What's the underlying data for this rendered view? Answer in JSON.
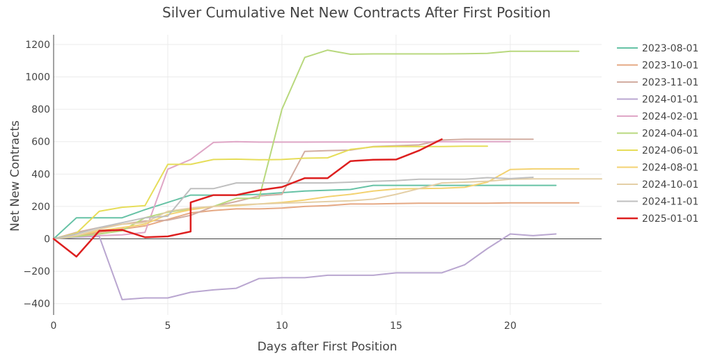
{
  "chart_data": {
    "type": "line",
    "title": "Silver Cumulative Net New Contracts After First Position",
    "xlabel": "Days after First Position",
    "ylabel": "Net New Contracts",
    "xlim": [
      0,
      24
    ],
    "ylim": [
      -470,
      1260
    ],
    "x_ticks": [
      0,
      5,
      10,
      15,
      20
    ],
    "y_ticks": [
      -400,
      -200,
      0,
      200,
      400,
      600,
      800,
      1000,
      1200
    ],
    "y_tick_labels": [
      "−400",
      "−200",
      "0",
      "200",
      "400",
      "600",
      "800",
      "1000",
      "1200"
    ],
    "grid": true,
    "legend_position": "right",
    "series": [
      {
        "name": "2023-08-01",
        "color": "#66c2a5",
        "width": 2,
        "x": [
          0,
          1,
          2,
          3,
          4,
          5,
          6,
          7,
          8,
          9,
          10,
          11,
          12,
          13,
          14,
          15,
          16,
          17,
          18,
          19,
          20,
          21,
          22
        ],
        "y": [
          0,
          130,
          130,
          130,
          180,
          225,
          270,
          270,
          270,
          275,
          285,
          295,
          300,
          305,
          330,
          330,
          330,
          330,
          330,
          330,
          330,
          330,
          330
        ]
      },
      {
        "name": "2023-10-01",
        "color": "#e5a883",
        "width": 2,
        "x": [
          0,
          1,
          2,
          3,
          4,
          5,
          6,
          7,
          8,
          9,
          10,
          11,
          12,
          13,
          14,
          15,
          16,
          17,
          18,
          19,
          20,
          21,
          22,
          23
        ],
        "y": [
          0,
          20,
          40,
          60,
          80,
          120,
          160,
          175,
          185,
          185,
          190,
          200,
          205,
          215,
          215,
          218,
          220,
          220,
          220,
          220,
          222,
          222,
          222,
          222
        ]
      },
      {
        "name": "2023-11-01",
        "color": "#d2ada1",
        "width": 2,
        "x": [
          0,
          1,
          2,
          3,
          4,
          5,
          6,
          7,
          8,
          9,
          10,
          11,
          12,
          13,
          14,
          15,
          16,
          17,
          18,
          19,
          20,
          21
        ],
        "y": [
          0,
          40,
          70,
          90,
          110,
          115,
          145,
          200,
          230,
          265,
          275,
          540,
          545,
          548,
          570,
          575,
          580,
          610,
          615,
          615,
          615,
          615
        ]
      },
      {
        "name": "2024-01-01",
        "color": "#b9a6d0",
        "width": 2,
        "x": [
          0,
          1,
          2,
          3,
          4,
          5,
          6,
          7,
          8,
          9,
          10,
          11,
          12,
          13,
          14,
          15,
          16,
          17,
          18,
          19,
          20,
          21,
          22
        ],
        "y": [
          0,
          10,
          15,
          -375,
          -365,
          -365,
          -330,
          -315,
          -305,
          -245,
          -240,
          -240,
          -225,
          -225,
          -225,
          -210,
          -210,
          -210,
          -160,
          -60,
          30,
          20,
          30
        ]
      },
      {
        "name": "2024-02-01",
        "color": "#dfa6c6",
        "width": 2,
        "x": [
          0,
          1,
          2,
          3,
          4,
          5,
          6,
          7,
          8,
          9,
          10,
          11,
          12,
          13,
          14,
          15,
          16,
          17,
          18,
          19,
          20
        ],
        "y": [
          0,
          15,
          20,
          25,
          40,
          430,
          490,
          595,
          600,
          597,
          597,
          597,
          598,
          598,
          598,
          598,
          598,
          600,
          600,
          600,
          600
        ]
      },
      {
        "name": "2024-04-01",
        "color": "#b8d87d",
        "width": 2,
        "x": [
          0,
          1,
          2,
          3,
          4,
          5,
          6,
          7,
          8,
          9,
          10,
          11,
          12,
          13,
          14,
          15,
          16,
          17,
          18,
          19,
          20,
          21,
          22,
          23
        ],
        "y": [
          0,
          15,
          30,
          50,
          130,
          165,
          185,
          200,
          250,
          250,
          800,
          1120,
          1165,
          1140,
          1142,
          1142,
          1142,
          1142,
          1143,
          1145,
          1158,
          1158,
          1158,
          1158
        ]
      },
      {
        "name": "2024-06-01",
        "color": "#e6dd59",
        "width": 2,
        "x": [
          0,
          1,
          2,
          3,
          4,
          5,
          6,
          7,
          8,
          9,
          10,
          11,
          12,
          13,
          14,
          15,
          16,
          17,
          18,
          19
        ],
        "y": [
          0,
          35,
          170,
          195,
          205,
          460,
          460,
          490,
          492,
          488,
          490,
          498,
          500,
          552,
          568,
          570,
          570,
          570,
          572,
          572
        ]
      },
      {
        "name": "2024-08-01",
        "color": "#f3d271",
        "width": 2,
        "x": [
          0,
          1,
          2,
          3,
          4,
          5,
          6,
          7,
          8,
          9,
          10,
          11,
          12,
          13,
          14,
          15,
          16,
          17,
          18,
          19,
          20,
          21,
          22,
          23
        ],
        "y": [
          0,
          20,
          50,
          70,
          90,
          150,
          180,
          200,
          205,
          215,
          225,
          240,
          260,
          275,
          295,
          308,
          310,
          312,
          318,
          350,
          428,
          432,
          432,
          432
        ]
      },
      {
        "name": "2024-10-01",
        "color": "#e4cfa6",
        "width": 2,
        "x": [
          0,
          1,
          2,
          3,
          4,
          5,
          6,
          7,
          8,
          9,
          10,
          11,
          12,
          13,
          14,
          15,
          16,
          17,
          18,
          19,
          20,
          21,
          22,
          23,
          24
        ],
        "y": [
          0,
          20,
          60,
          90,
          100,
          170,
          190,
          200,
          210,
          215,
          220,
          225,
          230,
          235,
          245,
          275,
          310,
          345,
          350,
          355,
          368,
          370,
          370,
          370,
          370
        ]
      },
      {
        "name": "2024-11-01",
        "color": "#bfbfbf",
        "width": 2,
        "x": [
          0,
          1,
          2,
          3,
          4,
          5,
          6,
          7,
          8,
          9,
          10,
          11,
          12,
          13,
          14,
          15,
          16,
          17,
          18,
          19,
          20,
          21
        ],
        "y": [
          0,
          30,
          70,
          100,
          130,
          140,
          310,
          310,
          345,
          345,
          345,
          345,
          345,
          350,
          355,
          360,
          368,
          368,
          368,
          378,
          372,
          380
        ]
      },
      {
        "name": "2025-01-01",
        "color": "#dd1f1f",
        "width": 2.5,
        "x": [
          0,
          1,
          2,
          3,
          4,
          5,
          6,
          6,
          7,
          8,
          9,
          10,
          11,
          12,
          13,
          14,
          15,
          16,
          17
        ],
        "y": [
          0,
          -110,
          50,
          55,
          10,
          15,
          45,
          225,
          270,
          270,
          300,
          320,
          375,
          375,
          480,
          488,
          490,
          545,
          615
        ]
      }
    ]
  }
}
